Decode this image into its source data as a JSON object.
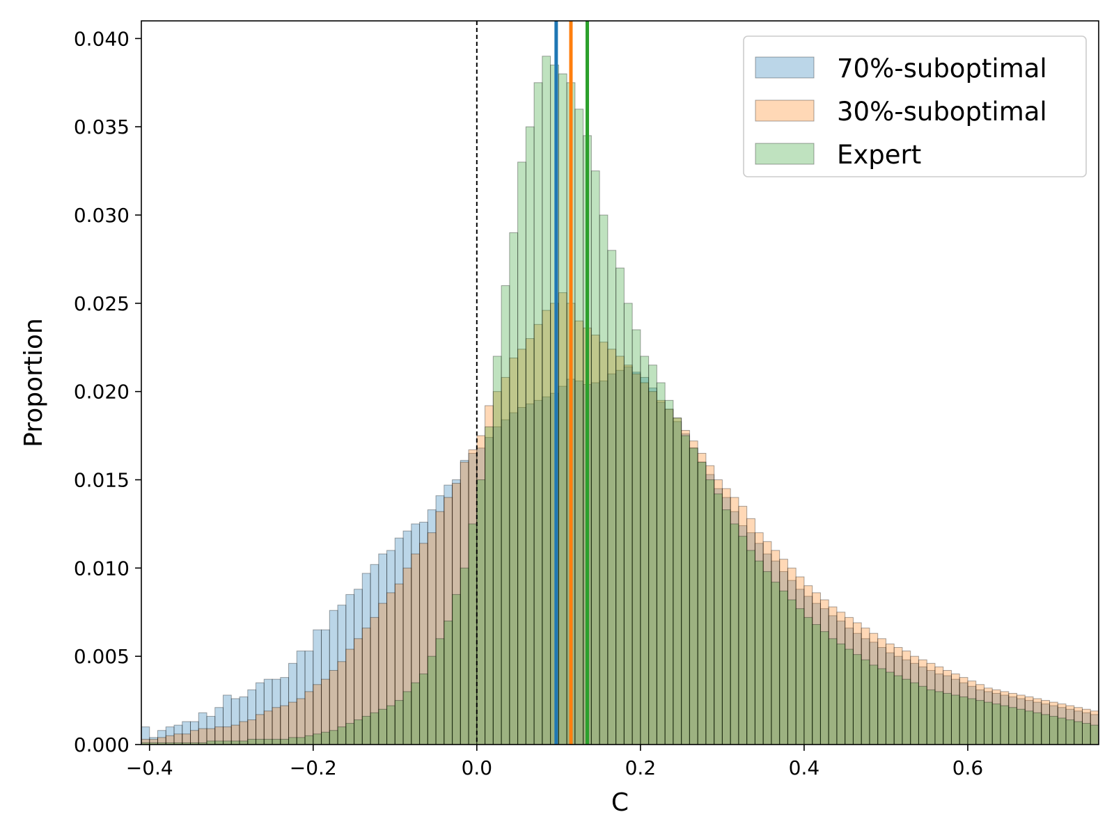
{
  "chart_data": {
    "type": "histogram",
    "xlabel": "C",
    "ylabel": "Proportion",
    "xlim": [
      -0.41,
      0.76
    ],
    "ylim": [
      0,
      0.041
    ],
    "bin_start": -0.41,
    "bin_width": 0.01,
    "x_ticks": [
      {
        "value": -0.4,
        "label": "−0.4"
      },
      {
        "value": -0.2,
        "label": "−0.2"
      },
      {
        "value": 0.0,
        "label": "0.0"
      },
      {
        "value": 0.2,
        "label": "0.2"
      },
      {
        "value": 0.4,
        "label": "0.4"
      },
      {
        "value": 0.6,
        "label": "0.6"
      }
    ],
    "y_ticks": [
      {
        "value": 0.0,
        "label": "0.000"
      },
      {
        "value": 0.005,
        "label": "0.005"
      },
      {
        "value": 0.01,
        "label": "0.010"
      },
      {
        "value": 0.015,
        "label": "0.015"
      },
      {
        "value": 0.02,
        "label": "0.020"
      },
      {
        "value": 0.025,
        "label": "0.025"
      },
      {
        "value": 0.03,
        "label": "0.030"
      },
      {
        "value": 0.035,
        "label": "0.035"
      },
      {
        "value": 0.04,
        "label": "0.040"
      }
    ],
    "reference_line": {
      "x": 0.0,
      "style": "dashed",
      "color": "#000000"
    },
    "legend_position": "top-right",
    "series": [
      {
        "name": "70%-suboptimal",
        "fill": "#1f77b4",
        "line_color": "#1f77b4",
        "mean": 0.097,
        "values": [
          0.001,
          0.0004,
          0.0008,
          0.001,
          0.0011,
          0.0013,
          0.0013,
          0.0018,
          0.0016,
          0.0021,
          0.0028,
          0.0026,
          0.0027,
          0.0031,
          0.0035,
          0.0037,
          0.0037,
          0.0038,
          0.0046,
          0.0053,
          0.0053,
          0.0065,
          0.0065,
          0.0076,
          0.0079,
          0.0085,
          0.0088,
          0.0097,
          0.0102,
          0.0108,
          0.011,
          0.0117,
          0.0121,
          0.0125,
          0.0126,
          0.0133,
          0.0141,
          0.0147,
          0.015,
          0.0161,
          0.0165,
          0.0168,
          0.0174,
          0.018,
          0.0184,
          0.0188,
          0.0191,
          0.0193,
          0.0195,
          0.0197,
          0.0199,
          0.0203,
          0.0207,
          0.0206,
          0.0204,
          0.0205,
          0.0206,
          0.021,
          0.0212,
          0.0214,
          0.0211,
          0.0208,
          0.0202,
          0.0194,
          0.019,
          0.0183,
          0.0176,
          0.0168,
          0.016,
          0.0153,
          0.0145,
          0.014,
          0.0132,
          0.0124,
          0.012,
          0.0114,
          0.0108,
          0.0104,
          0.0098,
          0.0093,
          0.0088,
          0.0084,
          0.008,
          0.0077,
          0.0073,
          0.007,
          0.0066,
          0.0063,
          0.006,
          0.0058,
          0.0055,
          0.0052,
          0.005,
          0.0048,
          0.0046,
          0.0044,
          0.0042,
          0.004,
          0.0039,
          0.0037,
          0.0035,
          0.0033,
          0.0031,
          0.003,
          0.0029,
          0.0028,
          0.0027,
          0.0026,
          0.0025,
          0.0024,
          0.0023,
          0.0022,
          0.0021,
          0.002,
          0.0019,
          0.0018,
          0.0017
        ]
      },
      {
        "name": "30%-suboptimal",
        "fill": "#ff7f0e",
        "line_color": "#ff7f0e",
        "mean": 0.115,
        "values": [
          0.0003,
          0.0003,
          0.0004,
          0.0005,
          0.0006,
          0.0006,
          0.0008,
          0.0009,
          0.0009,
          0.001,
          0.001,
          0.0011,
          0.0013,
          0.0014,
          0.0017,
          0.0019,
          0.0021,
          0.0022,
          0.0024,
          0.0026,
          0.003,
          0.0034,
          0.0037,
          0.0042,
          0.0047,
          0.0054,
          0.006,
          0.0066,
          0.0072,
          0.008,
          0.0086,
          0.0091,
          0.01,
          0.0108,
          0.0114,
          0.012,
          0.0132,
          0.014,
          0.0148,
          0.016,
          0.0167,
          0.0175,
          0.0192,
          0.02,
          0.0208,
          0.0219,
          0.0224,
          0.023,
          0.0238,
          0.0246,
          0.025,
          0.0256,
          0.025,
          0.024,
          0.0236,
          0.0232,
          0.0228,
          0.0224,
          0.022,
          0.0215,
          0.021,
          0.0205,
          0.02,
          0.0195,
          0.019,
          0.0185,
          0.0178,
          0.0172,
          0.0165,
          0.0158,
          0.015,
          0.0145,
          0.014,
          0.0135,
          0.0128,
          0.012,
          0.0115,
          0.011,
          0.0105,
          0.01,
          0.0095,
          0.009,
          0.0086,
          0.0082,
          0.0078,
          0.0075,
          0.0072,
          0.0069,
          0.0066,
          0.0063,
          0.006,
          0.0057,
          0.0055,
          0.0053,
          0.005,
          0.0048,
          0.0046,
          0.0044,
          0.0042,
          0.004,
          0.0038,
          0.0036,
          0.0034,
          0.0032,
          0.0031,
          0.003,
          0.0029,
          0.0028,
          0.0027,
          0.0026,
          0.0025,
          0.0024,
          0.0023,
          0.0022,
          0.0021,
          0.002,
          0.0019
        ]
      },
      {
        "name": "Expert",
        "fill": "#2ca02c",
        "line_color": "#2ca02c",
        "mean": 0.135,
        "values": [
          0.0001,
          0.0001,
          0.0001,
          0.0001,
          0.0001,
          0.0001,
          0.0001,
          0.0001,
          0.0002,
          0.0002,
          0.0002,
          0.0002,
          0.0002,
          0.0003,
          0.0003,
          0.0003,
          0.0003,
          0.0003,
          0.0004,
          0.0004,
          0.0005,
          0.0006,
          0.0007,
          0.0008,
          0.001,
          0.0012,
          0.0014,
          0.0016,
          0.0018,
          0.002,
          0.0022,
          0.0025,
          0.003,
          0.0035,
          0.004,
          0.005,
          0.006,
          0.007,
          0.0085,
          0.01,
          0.0125,
          0.015,
          0.018,
          0.022,
          0.026,
          0.029,
          0.033,
          0.035,
          0.0375,
          0.039,
          0.0385,
          0.038,
          0.0375,
          0.036,
          0.0345,
          0.0325,
          0.03,
          0.028,
          0.027,
          0.025,
          0.0235,
          0.022,
          0.0215,
          0.0205,
          0.0195,
          0.0185,
          0.0175,
          0.0168,
          0.016,
          0.015,
          0.0142,
          0.0133,
          0.0125,
          0.0118,
          0.011,
          0.0104,
          0.0098,
          0.0092,
          0.0087,
          0.0082,
          0.0077,
          0.0072,
          0.0068,
          0.0064,
          0.006,
          0.0057,
          0.0054,
          0.0051,
          0.0048,
          0.0045,
          0.0043,
          0.0041,
          0.0039,
          0.0037,
          0.0035,
          0.0033,
          0.0031,
          0.003,
          0.0029,
          0.0028,
          0.0027,
          0.0026,
          0.0025,
          0.0024,
          0.0023,
          0.0022,
          0.0021,
          0.002,
          0.0019,
          0.0018,
          0.0017,
          0.0016,
          0.0015,
          0.0014,
          0.0013,
          0.0012,
          0.0011
        ]
      }
    ]
  }
}
